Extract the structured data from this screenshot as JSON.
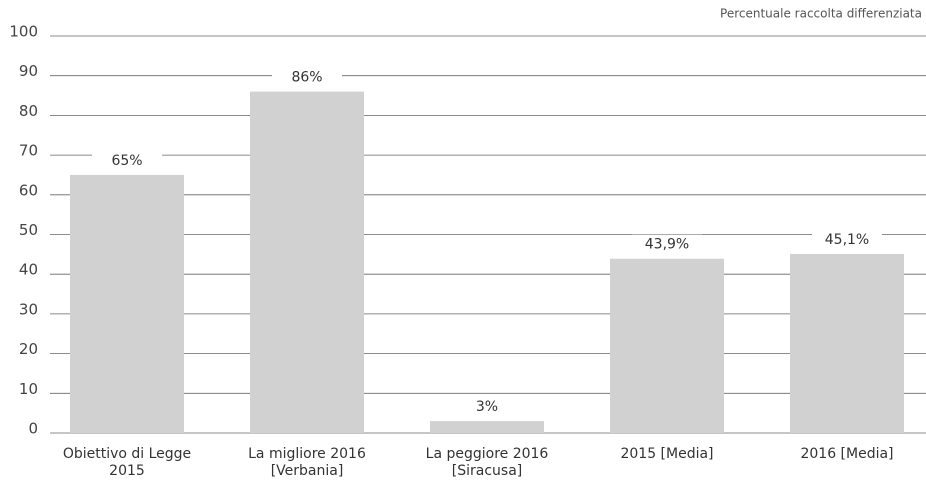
{
  "chart_data": {
    "type": "bar",
    "title": "Percentuale raccolta differenziata",
    "categories": [
      [
        "Obiettivo di Legge",
        "2015"
      ],
      [
        "La migliore 2016",
        "[Verbania]"
      ],
      [
        "La peggiore 2016",
        "[Siracusa]"
      ],
      [
        "2015 [Media]"
      ],
      [
        "2016 [Media]"
      ]
    ],
    "values": [
      65,
      86,
      3,
      43.9,
      45.1
    ],
    "value_labels": [
      "65%",
      "86%",
      "3%",
      "43,9%",
      "45,1%"
    ],
    "color": "#d1d1d1",
    "ylim": [
      0,
      100
    ],
    "yticks": [
      0,
      10,
      20,
      30,
      40,
      50,
      60,
      70,
      80,
      90,
      100
    ],
    "grid": true
  }
}
